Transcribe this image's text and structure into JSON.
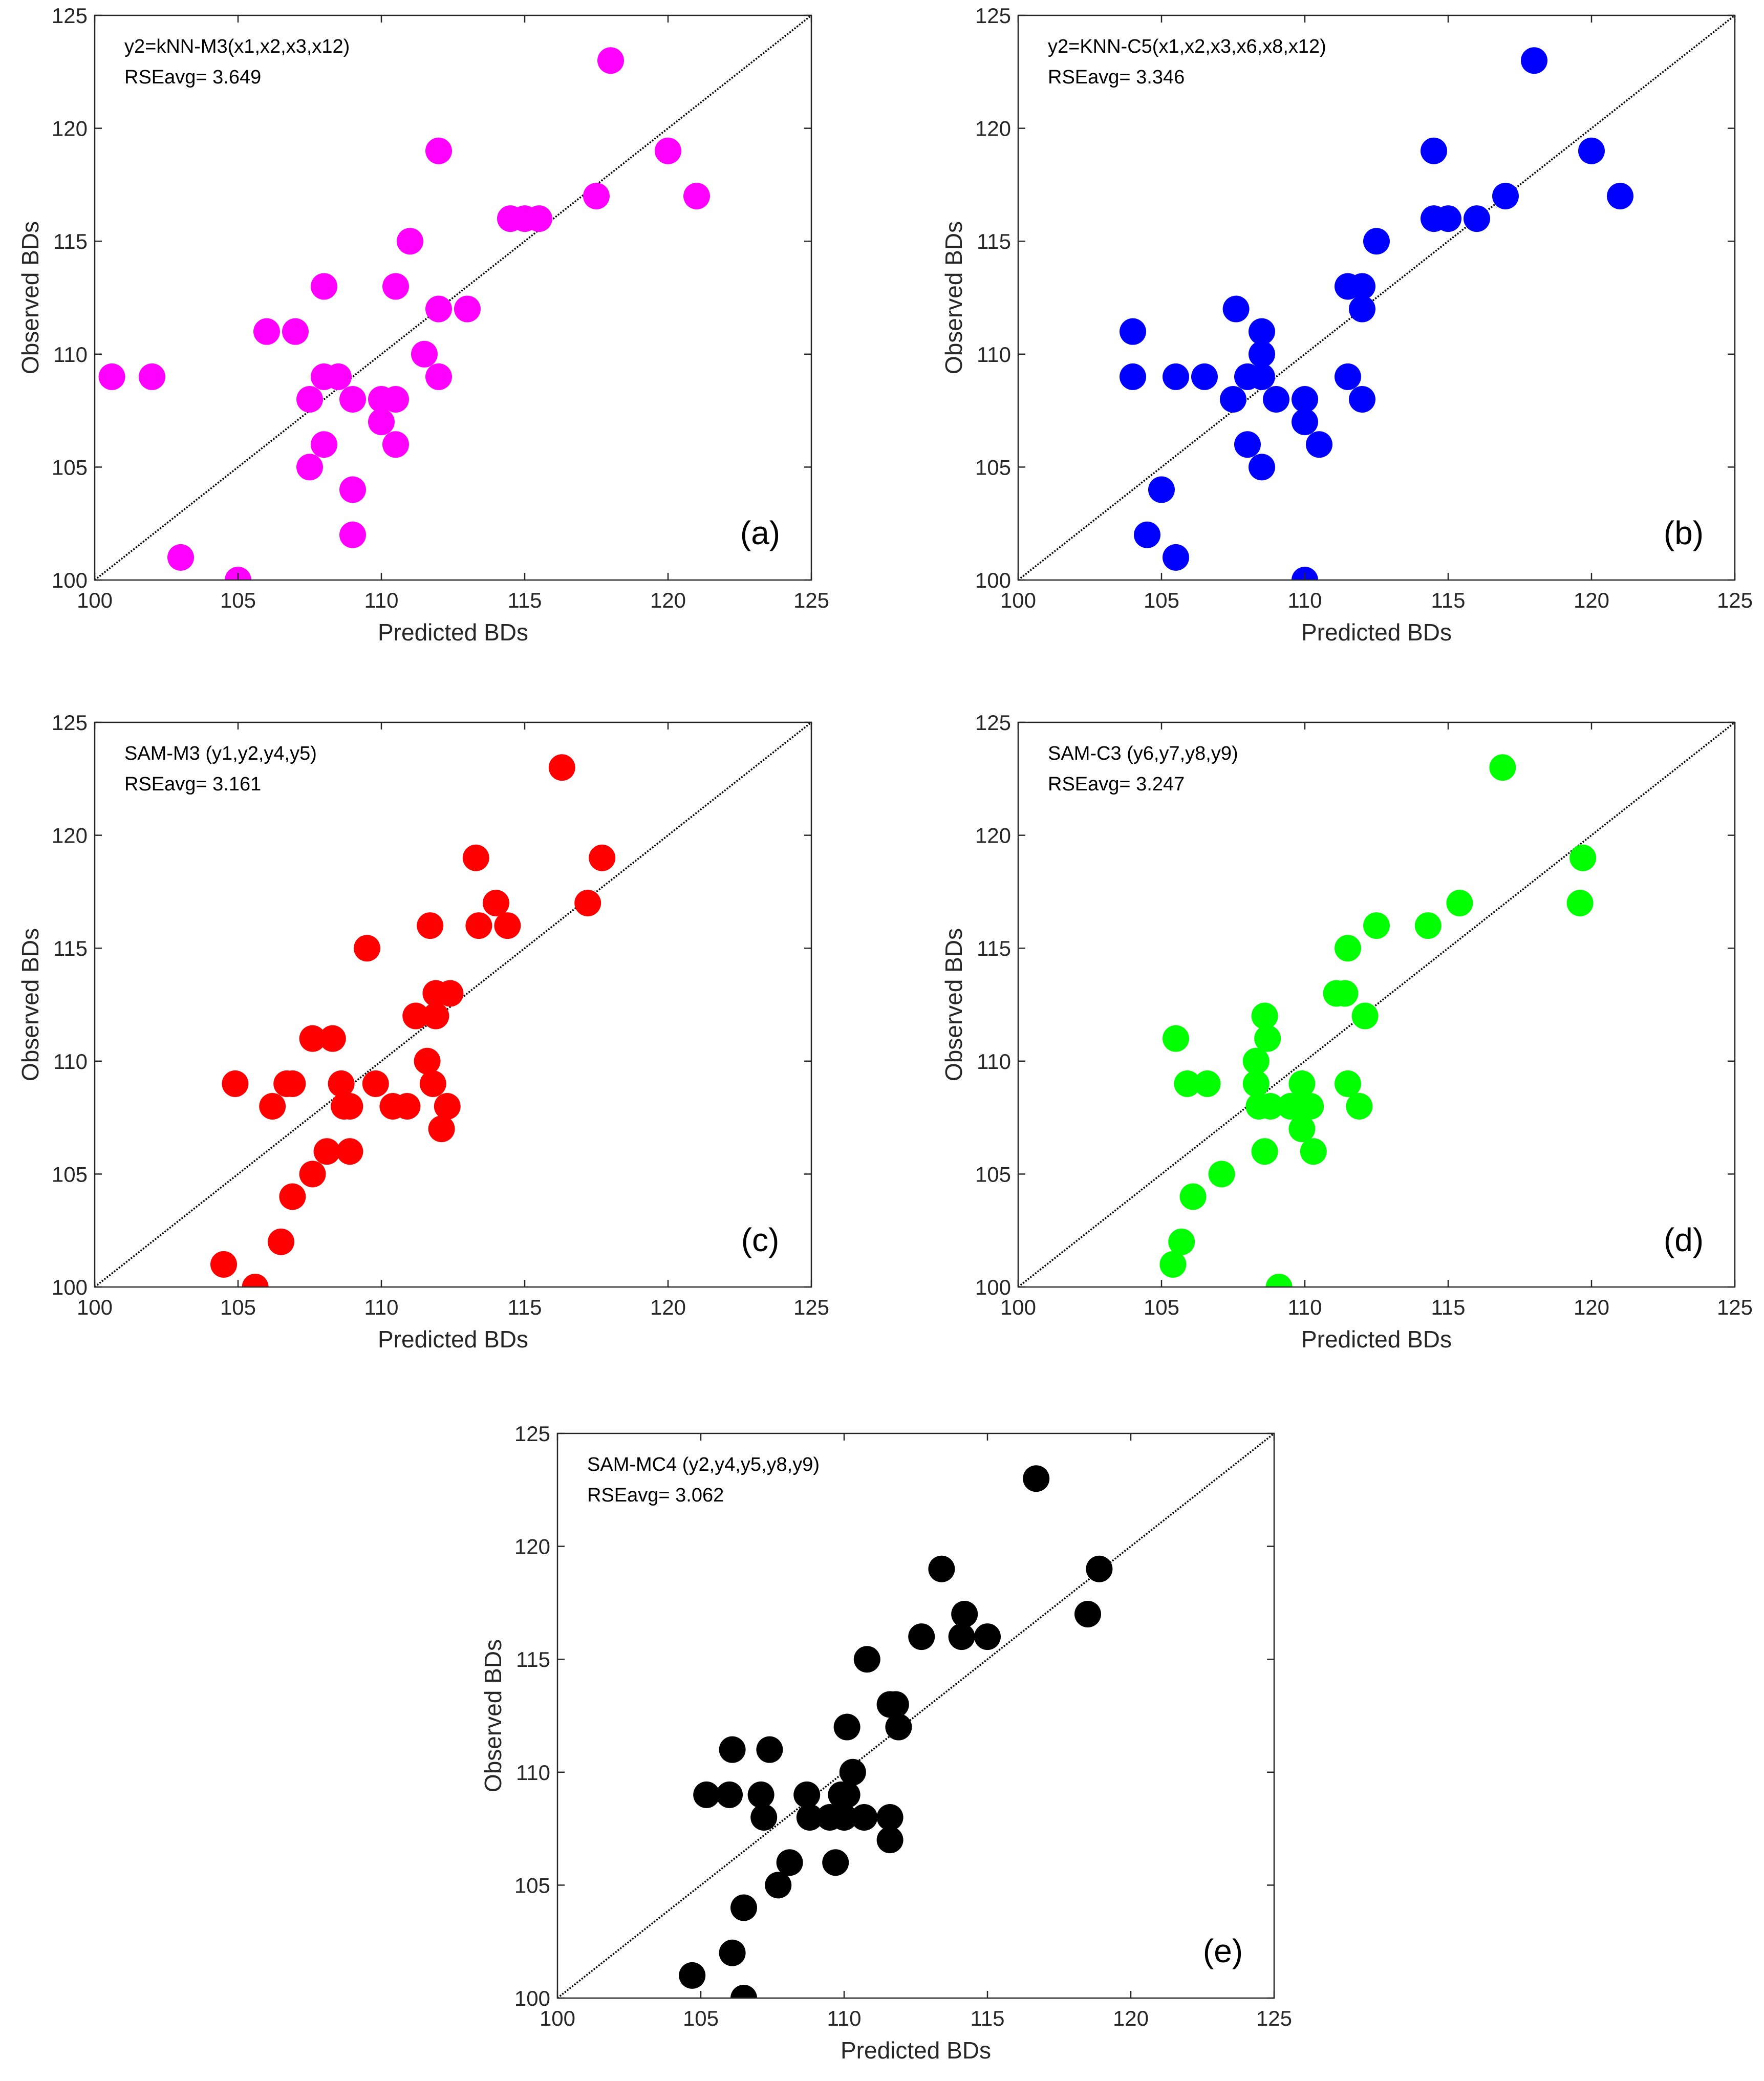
{
  "chart_data": [
    {
      "type": "scatter",
      "panel_label": "(a)",
      "model_label": "y2=kNN-M3(x1,x2,x3,x12)",
      "rse_label": "RSEavg= 3.649",
      "xlabel": "Predicted BDs",
      "ylabel": "Observed BDs",
      "xlim": [
        100,
        125
      ],
      "ylim": [
        100,
        125
      ],
      "xticks": [
        100,
        105,
        110,
        115,
        120,
        125
      ],
      "yticks": [
        100,
        105,
        110,
        115,
        120,
        125
      ],
      "marker_color": "#ff00ff",
      "reference_line": "y = x (dotted)",
      "x": [
        100.6,
        102,
        103,
        105,
        106,
        107,
        107.5,
        107.5,
        108,
        108,
        108,
        108.5,
        109,
        109,
        109,
        110,
        110,
        110.5,
        110.5,
        110.5,
        111,
        111.5,
        112,
        112,
        112,
        113,
        114.5,
        115,
        115.5,
        117.5,
        118,
        120,
        121
      ],
      "y": [
        109,
        109,
        101,
        100,
        111,
        111,
        108,
        105,
        113,
        109,
        106,
        109,
        108,
        104,
        102,
        108,
        107,
        113,
        108,
        106,
        115,
        110,
        119,
        112,
        109,
        112,
        116,
        116,
        116,
        117,
        123,
        119,
        117
      ]
    },
    {
      "type": "scatter",
      "panel_label": "(b)",
      "model_label": "y2=KNN-C5(x1,x2,x3,x6,x8,x12)",
      "rse_label": "RSEavg= 3.346",
      "xlabel": "Predicted BDs",
      "ylabel": "Observed BDs",
      "xlim": [
        100,
        125
      ],
      "ylim": [
        100,
        125
      ],
      "xticks": [
        100,
        105,
        110,
        115,
        120,
        125
      ],
      "yticks": [
        100,
        105,
        110,
        115,
        120,
        125
      ],
      "marker_color": "#0000ff",
      "reference_line": "y = x (dotted)",
      "x": [
        104,
        104,
        104.5,
        105,
        105.5,
        105.5,
        106.5,
        107.5,
        107.6,
        108,
        108,
        108.5,
        108.5,
        108.5,
        108.5,
        109,
        110,
        110,
        110,
        110.5,
        111.5,
        111.5,
        112,
        112,
        112,
        112.5,
        114.5,
        114.5,
        115,
        116,
        117,
        118,
        120,
        121
      ],
      "y": [
        111,
        109,
        102,
        104,
        109,
        101,
        109,
        108,
        112,
        109,
        106,
        111,
        110,
        109,
        105,
        108,
        108,
        107,
        100,
        106,
        113,
        109,
        113,
        112,
        108,
        115,
        119,
        116,
        116,
        116,
        117,
        123,
        119,
        117
      ]
    },
    {
      "type": "scatter",
      "panel_label": "(c)",
      "model_label": "SAM-M3 (y1,y2,y4,y5)",
      "rse_label": "RSEavg= 3.161",
      "xlabel": "Predicted BDs",
      "ylabel": "Observed BDs",
      "xlim": [
        100,
        125
      ],
      "ylim": [
        100,
        125
      ],
      "xticks": [
        100,
        105,
        110,
        115,
        120,
        125
      ],
      "yticks": [
        100,
        105,
        110,
        115,
        120,
        125
      ],
      "marker_color": "#ff0000",
      "reference_line": "y = x (dotted)",
      "x": [
        104.5,
        104.9,
        105.6,
        106.2,
        106.5,
        106.7,
        106.9,
        106.9,
        107.6,
        107.6,
        108.1,
        108.3,
        108.6,
        108.7,
        108.9,
        108.9,
        109.5,
        109.8,
        110.4,
        110.9,
        111.2,
        111.6,
        111.7,
        111.8,
        111.9,
        111.9,
        112.1,
        112.3,
        112.4,
        113.3,
        113.4,
        114,
        114.4,
        116.3,
        117.2,
        117.7
      ],
      "y": [
        101,
        109,
        100,
        108,
        102,
        109,
        109,
        104,
        111,
        105,
        106,
        111,
        109,
        108,
        108,
        106,
        115,
        109,
        108,
        108,
        112,
        110,
        116,
        109,
        113,
        112,
        107,
        108,
        113,
        119,
        116,
        117,
        116,
        123,
        117,
        119
      ]
    },
    {
      "type": "scatter",
      "panel_label": "(d)",
      "model_label": "SAM-C3 (y6,y7,y8,y9)",
      "rse_label": "RSEavg= 3.247",
      "xlabel": "Predicted BDs",
      "ylabel": "Observed BDs",
      "xlim": [
        100,
        125
      ],
      "ylim": [
        100,
        125
      ],
      "xticks": [
        100,
        105,
        110,
        115,
        120,
        125
      ],
      "yticks": [
        100,
        105,
        110,
        115,
        120,
        125
      ],
      "marker_color": "#00ff00",
      "reference_line": "y = x (dotted)",
      "x": [
        105.4,
        105.5,
        105.7,
        105.9,
        106.1,
        106.6,
        107.1,
        108.3,
        108.3,
        108.4,
        108.6,
        108.6,
        108.7,
        108.8,
        109.1,
        109.5,
        109.9,
        109.9,
        110,
        110.2,
        110.3,
        111.1,
        111.4,
        111.5,
        111.5,
        111.9,
        112.1,
        112.5,
        114.3,
        115.4,
        116.9,
        119.6,
        119.7
      ],
      "y": [
        101,
        111,
        102,
        109,
        104,
        109,
        105,
        110,
        109,
        108,
        112,
        106,
        111,
        108,
        100,
        108,
        109,
        107,
        108,
        108,
        106,
        113,
        113,
        115,
        109,
        108,
        112,
        116,
        116,
        117,
        123,
        117,
        119
      ]
    },
    {
      "type": "scatter",
      "panel_label": "(e)",
      "model_label": "SAM-MC4 (y2,y4,y5,y8,y9)",
      "rse_label": "RSEavg= 3.062",
      "xlabel": "Predicted BDs",
      "ylabel": "Observed BDs",
      "xlim": [
        100,
        125
      ],
      "ylim": [
        100,
        125
      ],
      "xticks": [
        100,
        105,
        110,
        115,
        120,
        125
      ],
      "yticks": [
        100,
        105,
        110,
        115,
        120,
        125
      ],
      "marker_color": "#000000",
      "reference_line": "y = x (dotted)",
      "x": [
        104.7,
        105.2,
        106,
        106.1,
        106.1,
        106.5,
        106.5,
        107.1,
        107.2,
        107.4,
        107.7,
        108.1,
        108.7,
        108.8,
        109.5,
        109.7,
        109.9,
        110,
        110.1,
        110.1,
        110.3,
        110.7,
        110.8,
        111.6,
        111.6,
        111.6,
        111.8,
        111.9,
        112.7,
        113.4,
        114.1,
        114.2,
        115,
        116.7,
        118.5,
        118.9
      ],
      "y": [
        101,
        109,
        109,
        111,
        102,
        100,
        104,
        109,
        108,
        111,
        105,
        106,
        109,
        108,
        108,
        106,
        109,
        108,
        112,
        109,
        110,
        108,
        115,
        113,
        108,
        107,
        113,
        112,
        116,
        119,
        116,
        117,
        116,
        123,
        117,
        119
      ]
    }
  ]
}
